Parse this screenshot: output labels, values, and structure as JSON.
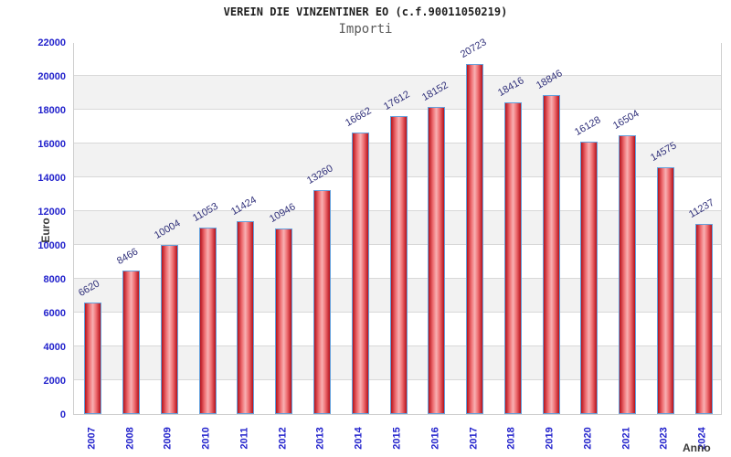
{
  "title": "VEREIN DIE VINZENTINER EO (c.f.90011050219)",
  "subtitle": "Importi",
  "chart_data": {
    "type": "bar",
    "title": "VEREIN DIE VINZENTINER EO (c.f.90011050219)",
    "subtitle": "Importi",
    "categories": [
      "2007",
      "2008",
      "2009",
      "2010",
      "2011",
      "2012",
      "2013",
      "2014",
      "2015",
      "2016",
      "2017",
      "2018",
      "2019",
      "2020",
      "2021",
      "2023",
      "2024"
    ],
    "values": [
      6620,
      8466,
      10004,
      11053,
      11424,
      10946,
      13260,
      16662,
      17612,
      18152,
      20723,
      18416,
      18846,
      16128,
      16504,
      14575,
      11237
    ],
    "xlabel": "Anno",
    "ylabel": "Euro",
    "ylim": [
      0,
      22000
    ],
    "ytick_step": 2000,
    "yticks": [
      0,
      2000,
      4000,
      6000,
      8000,
      10000,
      12000,
      14000,
      16000,
      18000,
      20000,
      22000
    ],
    "grid": true,
    "banded_background": true,
    "legend_position": "none"
  },
  "colors": {
    "background": "#ffffff",
    "band_gray": "#f2f2f2",
    "grid_line": "#d8d8d8",
    "plot_border": "#cfcfcf",
    "bar_edge": "#b5121b",
    "bar_mid": "#ee6c70",
    "bar_center": "#f8b0b3",
    "bar_border": "#64a0dc",
    "tick_label": "#2222cc",
    "value_label": "#30307a",
    "axis_title": "#3a3a3a",
    "title_color": "#1e1e1e",
    "subtitle_color": "#5a5a5a"
  }
}
